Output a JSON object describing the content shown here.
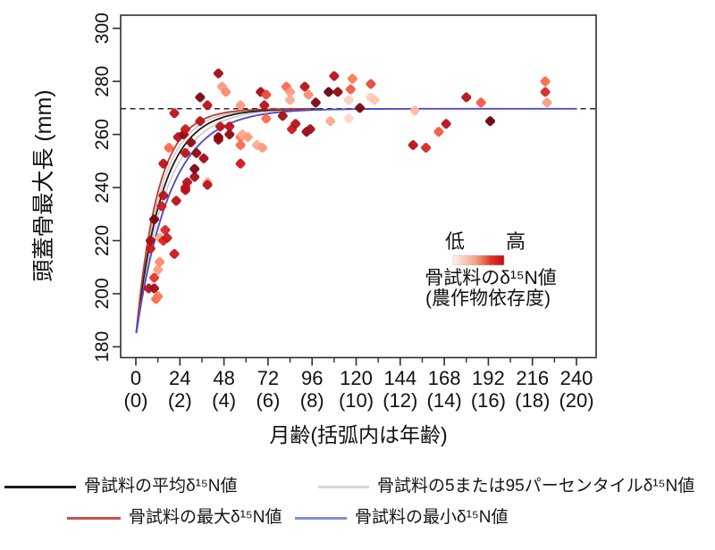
{
  "chart_data": {
    "type": "scatter",
    "xlabel": "月齢(括弧内は年齢)",
    "ylabel": "頭蓋骨最大長 (mm)",
    "xlim": [
      -8,
      251
    ],
    "ylim": [
      178,
      305
    ],
    "x_major_ticks": [
      0,
      24,
      48,
      72,
      96,
      120,
      144,
      168,
      192,
      216,
      240
    ],
    "x_year_labels": [
      "(0)",
      "(2)",
      "(4)",
      "(6)",
      "(8)",
      "(10)",
      "(12)",
      "(14)",
      "(16)",
      "(18)",
      "(20)"
    ],
    "x_minor_tick_step": 12,
    "y_ticks": [
      180,
      200,
      220,
      240,
      260,
      280,
      300
    ],
    "grid": false,
    "asymptote_mm": 269.7,
    "birth_length_mm": 184,
    "curves": [
      {
        "role": "percentile-95",
        "label": "骨試料の5または95パーセンタイルδ¹⁵N値",
        "color": "#c9c9c9",
        "k": 0.076,
        "end_month": 90,
        "width": 1.6
      },
      {
        "role": "percentile-5",
        "label": "骨試料の5または95パーセンタイルδ¹⁵N値",
        "color": "#c9c9c9",
        "k": 0.0615,
        "end_month": 90,
        "width": 1.6
      },
      {
        "role": "mean",
        "label": "骨試料の平均δ¹⁵N値",
        "color": "#1c1c1c",
        "k": 0.069,
        "end_month": 100,
        "width": 1.8
      },
      {
        "role": "max",
        "label": "骨試料の最大δ¹⁵N値",
        "color": "#bf3a32",
        "k": 0.0835,
        "end_month": 96,
        "width": 1.8
      },
      {
        "role": "min",
        "label": "骨試料の最小δ¹⁵N値",
        "color": "#4f4dcc",
        "k": 0.0535,
        "end_month": 241,
        "width": 1.9
      }
    ],
    "points": [
      [
        7,
        202,
        0.8
      ],
      [
        8,
        217,
        0.75
      ],
      [
        8,
        220,
        0.85
      ],
      [
        10,
        206,
        0.65
      ],
      [
        10,
        202,
        0.85
      ],
      [
        10,
        228,
        0.95
      ],
      [
        11,
        198,
        0.5
      ],
      [
        12,
        209,
        0.35
      ],
      [
        12,
        199,
        0.45
      ],
      [
        13,
        212,
        0.4
      ],
      [
        13,
        221,
        0.3
      ],
      [
        14,
        233,
        0.75
      ],
      [
        15,
        237,
        0.8
      ],
      [
        15,
        220,
        0.7
      ],
      [
        15,
        249,
        0.8
      ],
      [
        16,
        224,
        0.7
      ],
      [
        17,
        221,
        0.75
      ],
      [
        18,
        255,
        0.5
      ],
      [
        21,
        215,
        0.75
      ],
      [
        21,
        268,
        0.8
      ],
      [
        22,
        235,
        0.8
      ],
      [
        23,
        259,
        0.8
      ],
      [
        26,
        260,
        0.9
      ],
      [
        27,
        240,
        0.8
      ],
      [
        27,
        262,
        0.75
      ],
      [
        27,
        253,
        0.8
      ],
      [
        27,
        239,
        0.8
      ],
      [
        28,
        242,
        0.8
      ],
      [
        30,
        257,
        0.9
      ],
      [
        32,
        244,
        0.85
      ],
      [
        32,
        247,
        0.95
      ],
      [
        33,
        253,
        0.9
      ],
      [
        35,
        265,
        0.8
      ],
      [
        35,
        274,
        0.95
      ],
      [
        37,
        251,
        0.85
      ],
      [
        39,
        242,
        0.3
      ],
      [
        39,
        271,
        0.8
      ],
      [
        39,
        241,
        0.8
      ],
      [
        45,
        283,
        0.85
      ],
      [
        45,
        259,
        0.95
      ],
      [
        45,
        258,
        0.9
      ],
      [
        46,
        263,
        0.8
      ],
      [
        47,
        278,
        0.35
      ],
      [
        49,
        276,
        0.4
      ],
      [
        51,
        263,
        0.8
      ],
      [
        51,
        260,
        0.9
      ],
      [
        57,
        271,
        0.35
      ],
      [
        57,
        259,
        0.45
      ],
      [
        57,
        256,
        0.5
      ],
      [
        57,
        249,
        0.75
      ],
      [
        58,
        260,
        0.3
      ],
      [
        61,
        259,
        0.35
      ],
      [
        66,
        256,
        0.3
      ],
      [
        68,
        276,
        0.85
      ],
      [
        69,
        255,
        0.35
      ],
      [
        70,
        271,
        0.8
      ],
      [
        71,
        275,
        0.6
      ],
      [
        71,
        266,
        0.5
      ],
      [
        80,
        267,
        0.85
      ],
      [
        82,
        278,
        0.5
      ],
      [
        84,
        276,
        0.35
      ],
      [
        84,
        273,
        0.3
      ],
      [
        85,
        262,
        0.75
      ],
      [
        87,
        264,
        0.8
      ],
      [
        92,
        278,
        0.8
      ],
      [
        93,
        261,
        0.9
      ],
      [
        94,
        275,
        0.4
      ],
      [
        95,
        262,
        0.85
      ],
      [
        98,
        272,
        0.95
      ],
      [
        105,
        276,
        1.0
      ],
      [
        106,
        265,
        0.3
      ],
      [
        108,
        282,
        0.8
      ],
      [
        110,
        276,
        0.9
      ],
      [
        116,
        273,
        0.15
      ],
      [
        116,
        266,
        0.12
      ],
      [
        117,
        277,
        0.55
      ],
      [
        118,
        281,
        0.45
      ],
      [
        122,
        270,
        0.95
      ],
      [
        128,
        279,
        0.6
      ],
      [
        128,
        274,
        0.15
      ],
      [
        130,
        273,
        0.2
      ],
      [
        151,
        256,
        0.8
      ],
      [
        152,
        269,
        0.25
      ],
      [
        158,
        255,
        0.7
      ],
      [
        165,
        261,
        0.55
      ],
      [
        169,
        264,
        0.8
      ],
      [
        180,
        274,
        0.8
      ],
      [
        188,
        272,
        0.55
      ],
      [
        193,
        265,
        1.0
      ],
      [
        223,
        280,
        0.5
      ],
      [
        223,
        276,
        0.7
      ],
      [
        224,
        272,
        0.35
      ]
    ],
    "color_scale": {
      "low_label": "低",
      "high_label": "高",
      "caption_line1": "骨試料のδ¹⁵N値",
      "caption_line2": "(農作物依存度)",
      "point_stops": [
        [
          0,
          "#fdeee6"
        ],
        [
          0.25,
          "#fcbba1"
        ],
        [
          0.5,
          "#fb6a4a"
        ],
        [
          0.75,
          "#cb181d"
        ],
        [
          1,
          "#67000d"
        ]
      ],
      "bar_stops": [
        [
          0,
          "#fdf3ee"
        ],
        [
          0.45,
          "#f0a085"
        ],
        [
          0.75,
          "#dd3424"
        ],
        [
          1,
          "#c20b0b"
        ]
      ]
    }
  },
  "legend": {
    "items": [
      {
        "label": "骨試料の平均δ¹⁵N値",
        "color": "#1c1c1c"
      },
      {
        "label": "骨試料の5または95パーセンタイルδ¹⁵N値",
        "color": "#d8d8d8"
      },
      {
        "label": "骨試料の最大δ¹⁵N値",
        "color": "#c9504c"
      },
      {
        "label": "骨試料の最小δ¹⁵N値",
        "color": "#7b93cc"
      }
    ]
  }
}
